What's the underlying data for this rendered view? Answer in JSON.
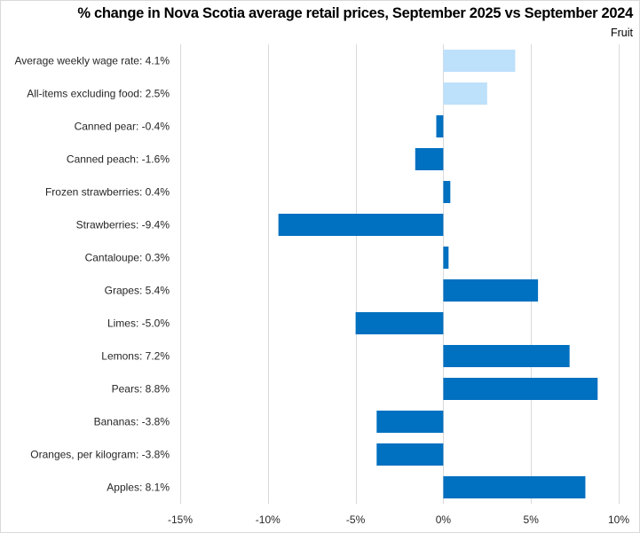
{
  "chart_data": {
    "type": "bar",
    "orientation": "horizontal",
    "title": "% change in Nova Scotia average retail prices, September 2025 vs September 2024",
    "subtitle": "Fruit",
    "xlabel": "",
    "ylabel": "",
    "xlim": [
      -15,
      10
    ],
    "x_ticks": [
      -15,
      -10,
      -5,
      0,
      5,
      10
    ],
    "x_tick_labels": [
      "-15%",
      "-10%",
      "-5%",
      "0%",
      "5%",
      "10%"
    ],
    "grid": "vertical",
    "legend": "none",
    "categories": [
      "Average weekly wage rate: 4.1%",
      "All-items excluding food: 2.5%",
      "Canned pear: -0.4%",
      "Canned peach: -1.6%",
      "Frozen strawberries: 0.4%",
      "Strawberries: -9.4%",
      "Cantaloupe: 0.3%",
      "Grapes: 5.4%",
      "Limes: -5.0%",
      "Lemons: 7.2%",
      "Pears: 8.8%",
      "Bananas: -3.8%",
      "Oranges, per kilogram: -3.8%",
      "Apples: 8.1%"
    ],
    "values": [
      4.1,
      2.5,
      -0.4,
      -1.6,
      0.4,
      -9.4,
      0.3,
      5.4,
      -5.0,
      7.2,
      8.8,
      -3.8,
      -3.8,
      8.1
    ],
    "bar_colors": [
      "#bde0fb",
      "#bde0fb",
      "#0070c0",
      "#0070c0",
      "#0070c0",
      "#0070c0",
      "#0070c0",
      "#0070c0",
      "#0070c0",
      "#0070c0",
      "#0070c0",
      "#0070c0",
      "#0070c0",
      "#0070c0"
    ],
    "colors": {
      "reference": "#bde0fb",
      "item": "#0070c0",
      "grid": "#d9d9d9"
    }
  }
}
